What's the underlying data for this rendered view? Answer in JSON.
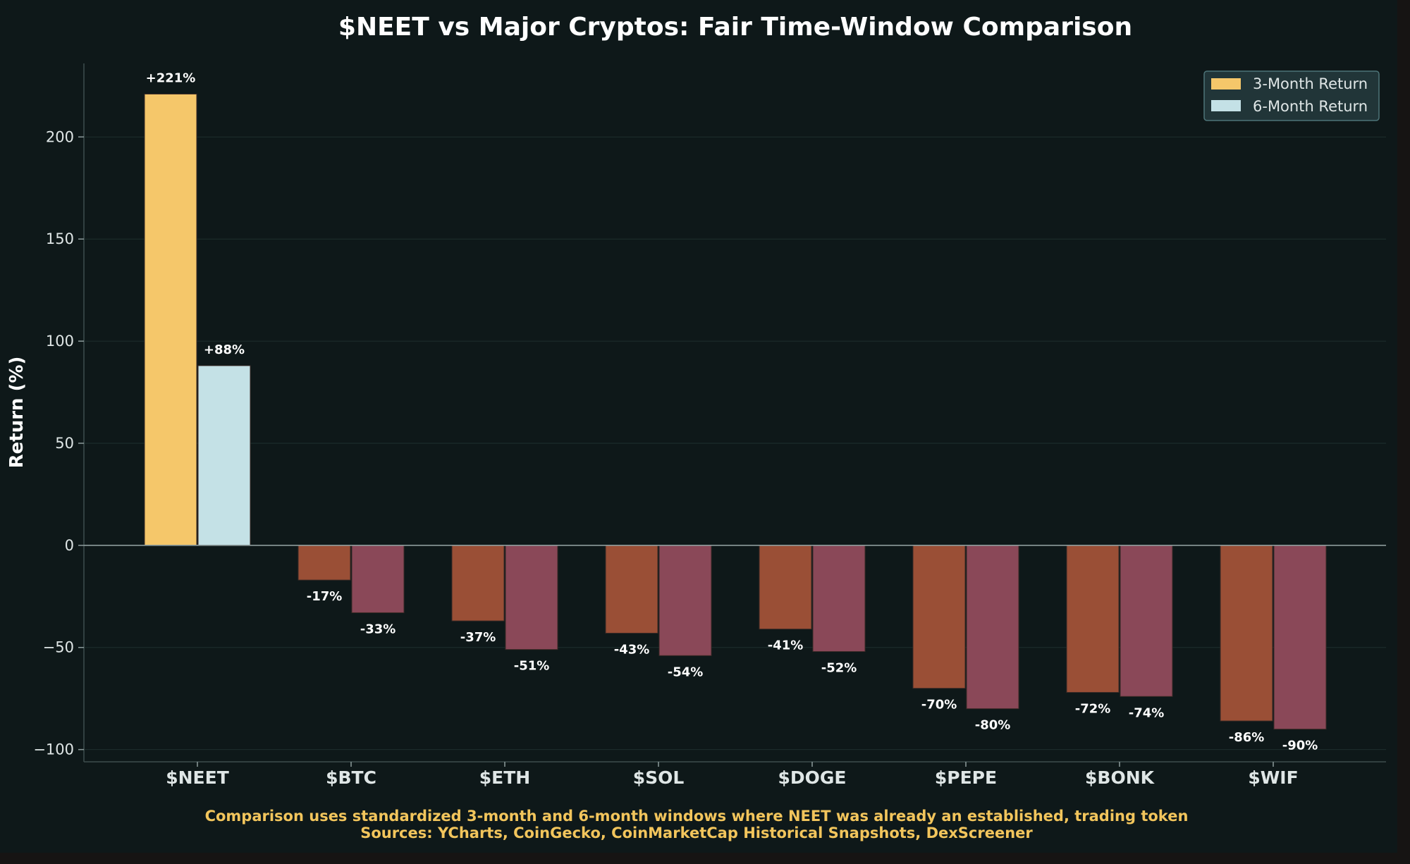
{
  "chart_data": {
    "type": "bar",
    "title": "$NEET vs Major Cryptos: Fair Time-Window Comparison",
    "xlabel": "",
    "ylabel": "Return (%)",
    "ylim": [
      -106,
      236
    ],
    "yticks": [
      -100,
      -50,
      0,
      50,
      100,
      150,
      200
    ],
    "ytick_labels": [
      "−100",
      "−50",
      "0",
      "50",
      "100",
      "150",
      "200"
    ],
    "categories": [
      "$NEET",
      "$BTC",
      "$ETH",
      "$SOL",
      "$DOGE",
      "$PEPE",
      "$BONK",
      "$WIF"
    ],
    "series": [
      {
        "name": "3-Month Return",
        "values": [
          221,
          -17,
          -37,
          -43,
          -41,
          -70,
          -72,
          -86
        ],
        "labels": [
          "+221%",
          "-17%",
          "-37%",
          "-43%",
          "-41%",
          "-70%",
          "-72%",
          "-86%"
        ],
        "color": "#f5c76a",
        "negative_color": "#9a4f36"
      },
      {
        "name": "6-Month Return",
        "values": [
          88,
          -33,
          -51,
          -54,
          -52,
          -80,
          -74,
          -90
        ],
        "labels": [
          "+88%",
          "-33%",
          "-51%",
          "-54%",
          "-52%",
          "-80%",
          "-74%",
          "-90%"
        ],
        "color": "#c4e1e6",
        "negative_color": "#8a4858"
      }
    ],
    "legend": {
      "position": "top-right",
      "entries": [
        "3-Month Return",
        "6-Month Return"
      ]
    },
    "grid": true,
    "footnote": {
      "line1": "Comparison uses standardized 3-month and 6-month windows where NEET was already an established, trading token",
      "line2": "Sources: YCharts, CoinGecko, CoinMarketCap Historical Snapshots, DexScreener"
    }
  }
}
